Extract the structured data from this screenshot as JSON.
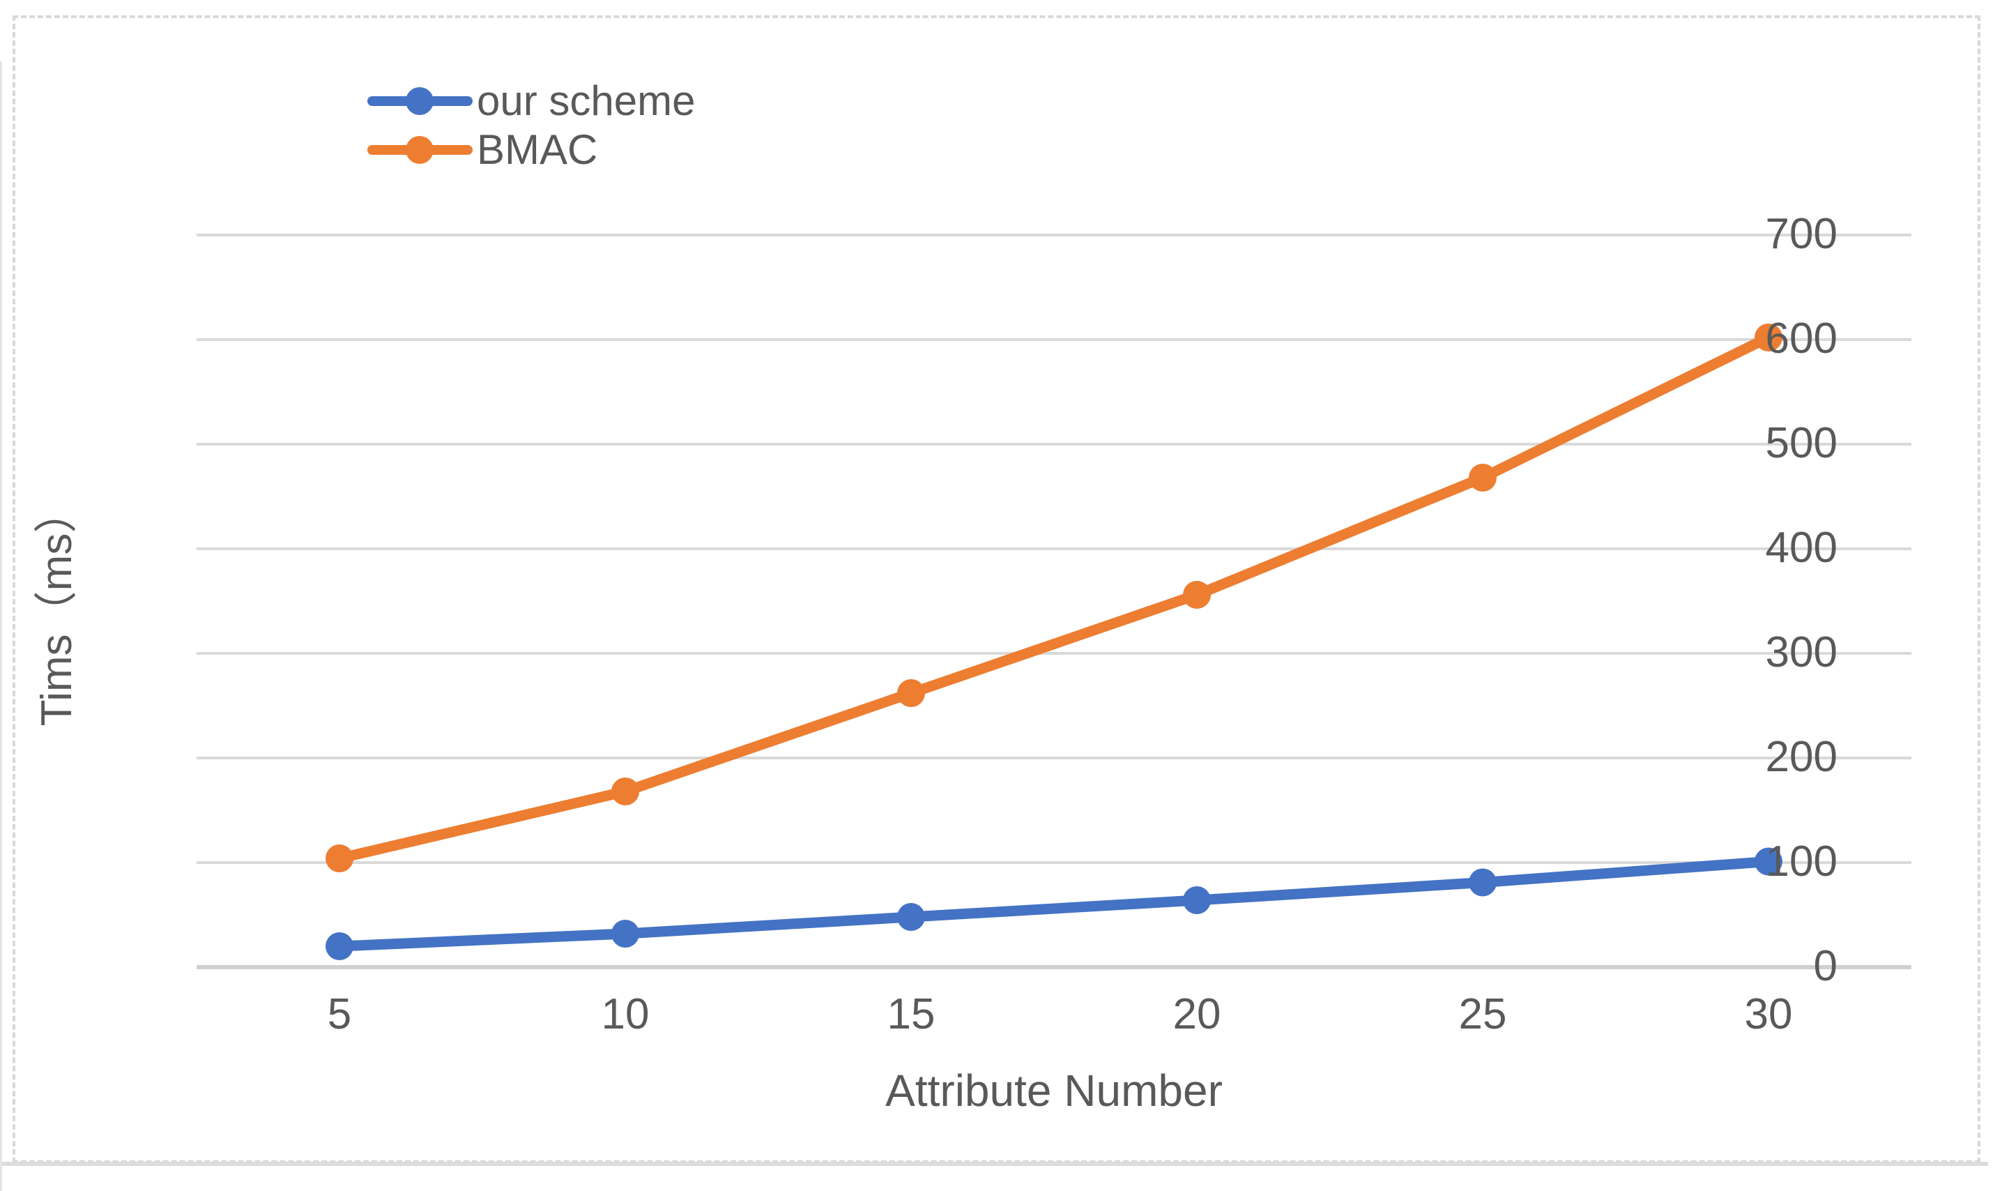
{
  "window": {
    "background": "#ffffff",
    "frame_border_color": "#d9d9d9"
  },
  "chart_data": {
    "type": "line",
    "title": "",
    "categories": [
      5,
      10,
      15,
      20,
      25,
      30
    ],
    "series": [
      {
        "name": "our scheme",
        "color": "#4472C4",
        "values": [
          20,
          32,
          48,
          64,
          81,
          101
        ]
      },
      {
        "name": "BMAC",
        "color": "#ED7D31",
        "values": [
          104,
          168,
          262,
          356,
          468,
          602
        ]
      }
    ],
    "xlabel": "Attribute Number",
    "ylabel": "Tims（ms）",
    "ylim": [
      0,
      700
    ],
    "ytick_step": 100,
    "yticks": [
      0,
      100,
      200,
      300,
      400,
      500,
      600,
      700
    ],
    "grid": true,
    "legend_position": "top-left",
    "colors": {
      "gridline": "#d9d9d9",
      "axis_line": "#d0d0d0",
      "tick_text": "#595959"
    }
  }
}
